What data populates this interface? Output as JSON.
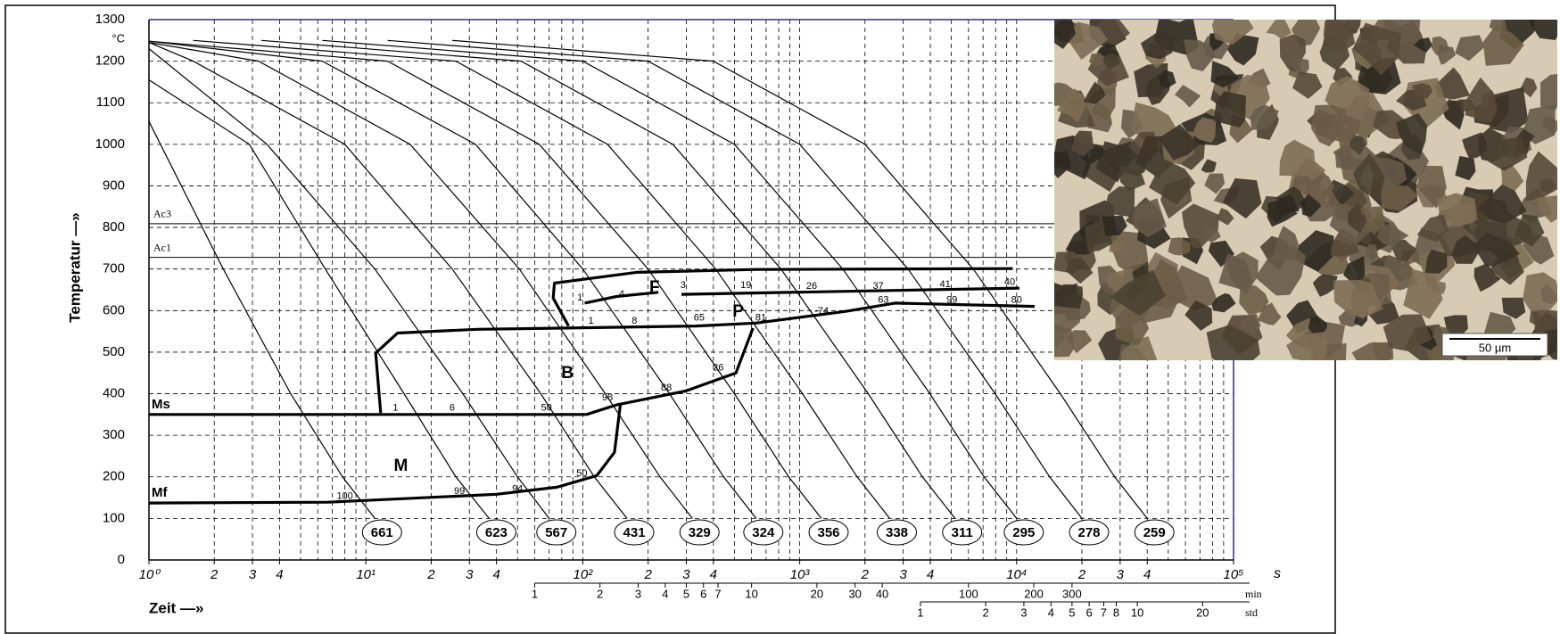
{
  "chart_data": {
    "type": "line",
    "x_scale": "log",
    "xlim": [
      1,
      100000
    ],
    "ylim": [
      0,
      1300
    ],
    "y_label": "Temperatur —»",
    "y_unit": "°C",
    "x_label": "Zeit —»",
    "x_unit": "s",
    "yticks": [
      0,
      100,
      200,
      300,
      400,
      500,
      600,
      700,
      800,
      900,
      1000,
      1100,
      1200,
      1300
    ],
    "xticks": [
      {
        "value": 1,
        "label": "10⁰"
      },
      2,
      3,
      4,
      {
        "value": 10,
        "label": "10¹"
      },
      {
        "value": 20,
        "label": "2"
      },
      {
        "value": 30,
        "label": "3"
      },
      {
        "value": 40,
        "label": "4"
      },
      {
        "value": 100,
        "label": "10²"
      },
      {
        "value": 200,
        "label": "2"
      },
      {
        "value": 300,
        "label": "3"
      },
      {
        "value": 400,
        "label": "4"
      },
      {
        "value": 1000,
        "label": "10³"
      },
      {
        "value": 2000,
        "label": "2"
      },
      {
        "value": 3000,
        "label": "3"
      },
      {
        "value": 4000,
        "label": "4"
      },
      {
        "value": 10000,
        "label": "10⁴"
      },
      {
        "value": 20000,
        "label": "2"
      },
      {
        "value": 30000,
        "label": "3"
      },
      {
        "value": 40000,
        "label": "4"
      },
      {
        "value": 100000,
        "label": "10⁵"
      }
    ],
    "xgrid": [
      1,
      2,
      3,
      4,
      5,
      6,
      7,
      8,
      9,
      10,
      20,
      30,
      40,
      50,
      60,
      70,
      80,
      90,
      100,
      200,
      300,
      400,
      500,
      600,
      700,
      800,
      900,
      1000,
      2000,
      3000,
      4000,
      5000,
      6000,
      7000,
      8000,
      9000,
      10000,
      20000,
      30000,
      40000,
      50000,
      60000,
      70000,
      80000,
      90000,
      100000
    ],
    "grid": true,
    "min_axis": {
      "unit": "min",
      "ticks": [
        1,
        2,
        3,
        4,
        5,
        6,
        7,
        10,
        20,
        30,
        40,
        100,
        200,
        300
      ]
    },
    "std_axis": {
      "unit": "std",
      "ticks": [
        1,
        2,
        3,
        4,
        5,
        6,
        7,
        8,
        10,
        20
      ]
    },
    "reference_lines": [
      {
        "name": "Ac3",
        "value": 809
      },
      {
        "name": "Ac1",
        "value": 728
      }
    ],
    "series": [
      {
        "hardness": 661,
        "color": "#000000",
        "x": [
          1,
          2.2,
          4.5,
          7.8,
          11
        ],
        "values": [
          1055,
          700,
          400,
          200,
          100
        ]
      },
      {
        "hardness": 623,
        "color": "#000000",
        "x": [
          1,
          2.9,
          6.5,
          15,
          26,
          37
        ],
        "values": [
          1155,
          1000,
          700,
          400,
          200,
          100
        ]
      },
      {
        "hardness": 567,
        "color": "#000000",
        "x": [
          1,
          3.5,
          11,
          28,
          50,
          70
        ],
        "values": [
          1230,
          1000,
          700,
          400,
          200,
          100
        ]
      },
      {
        "hardness": 431,
        "color": "#000000",
        "x": [
          1,
          1.6,
          8,
          25,
          64,
          113,
          160
        ],
        "values": [
          1245,
          1200,
          1000,
          700,
          400,
          200,
          100
        ]
      },
      {
        "hardness": 329,
        "color": "#000000",
        "x": [
          1,
          3.2,
          16,
          51,
          127,
          227,
          320
        ],
        "values": [
          1245,
          1200,
          1000,
          700,
          400,
          200,
          100
        ]
      },
      {
        "hardness": 324,
        "color": "#000000",
        "x": [
          1,
          6.3,
          32,
          100,
          251,
          446,
          630
        ],
        "values": [
          1248,
          1200,
          1000,
          700,
          400,
          200,
          100
        ]
      },
      {
        "hardness": 356,
        "color": "#000000",
        "x": [
          1,
          12.6,
          63,
          200,
          500,
          890,
          1260
        ],
        "values": [
          1248,
          1200,
          1000,
          700,
          400,
          200,
          100
        ]
      },
      {
        "hardness": 338,
        "color": "#000000",
        "x": [
          1.6,
          26,
          130,
          410,
          1030,
          1840,
          2600
        ],
        "values": [
          1250,
          1200,
          1000,
          700,
          400,
          200,
          100
        ]
      },
      {
        "hardness": 311,
        "color": "#000000",
        "x": [
          3.3,
          52,
          260,
          820,
          2070,
          3680,
          5200
        ],
        "values": [
          1250,
          1200,
          1000,
          700,
          400,
          200,
          100
        ]
      },
      {
        "hardness": 295,
        "color": "#000000",
        "x": [
          6.3,
          100,
          500,
          1580,
          3980,
          7080,
          10000
        ],
        "values": [
          1250,
          1200,
          1000,
          700,
          400,
          200,
          100
        ]
      },
      {
        "hardness": 278,
        "color": "#000000",
        "x": [
          12.6,
          200,
          1000,
          3160,
          7960,
          14200,
          20000
        ],
        "values": [
          1250,
          1200,
          1000,
          700,
          400,
          200,
          100
        ]
      },
      {
        "hardness": 259,
        "color": "#000000",
        "x": [
          25,
          400,
          2000,
          6310,
          15900,
          28300,
          40000
        ],
        "values": [
          1250,
          1200,
          1000,
          700,
          400,
          200,
          100
        ]
      }
    ],
    "boundaries": [
      {
        "name": "Ms",
        "x": [
          1,
          104,
          143,
          300,
          508,
          609
        ],
        "values": [
          350,
          350,
          373,
          407,
          450,
          558
        ]
      },
      {
        "name": "Mf",
        "x": [
          1,
          6.7,
          40,
          76,
          116,
          140,
          149
        ],
        "values": [
          137,
          139,
          158,
          175,
          203,
          259,
          373
        ]
      },
      {
        "x": [
          11.7,
          11.1,
          14,
          32.6,
          84.5,
          333,
          628,
          1630,
          2750,
          12100
        ],
        "values": [
          354,
          498,
          546,
          555,
          558,
          563,
          570,
          598,
          618,
          610
        ]
      },
      {
        "x": [
          86,
          73,
          74,
          177,
          628,
          9600
        ],
        "values": [
          563,
          630,
          666,
          692,
          699,
          701
        ]
      },
      {
        "x": [
          285,
          10300
        ],
        "values": [
          639,
          654
        ]
      },
      {
        "x": [
          102,
          143,
          223
        ],
        "values": [
          618,
          634,
          644
        ]
      }
    ],
    "phase_labels": [
      {
        "text": "F",
        "x": 214,
        "y": 654
      },
      {
        "text": "P",
        "x": 520,
        "y": 596
      },
      {
        "text": "B",
        "x": 85,
        "y": 448
      },
      {
        "text": "M",
        "x": 14.5,
        "y": 225
      }
    ],
    "annotations": [
      {
        "text": "1",
        "x": 13.7,
        "y": 366
      },
      {
        "text": "6",
        "x": 25,
        "y": 366
      },
      {
        "text": "50",
        "x": 68,
        "y": 366
      },
      {
        "text": "98",
        "x": 130,
        "y": 390
      },
      {
        "text": "88",
        "x": 243,
        "y": 414
      },
      {
        "text": "26",
        "x": 421,
        "y": 462
      },
      {
        "text": "65",
        "x": 344,
        "y": 582
      },
      {
        "text": "81",
        "x": 662,
        "y": 582
      },
      {
        "text": "-74",
        "x": 1262,
        "y": 598
      },
      {
        "text": "63",
        "x": 2430,
        "y": 625
      },
      {
        "text": "99",
        "x": 5030,
        "y": 625
      },
      {
        "text": "80",
        "x": 10000,
        "y": 625
      },
      {
        "text": "40",
        "x": 9290,
        "y": 668
      },
      {
        "text": "41",
        "x": 4680,
        "y": 663
      },
      {
        "text": "37",
        "x": 2300,
        "y": 658
      },
      {
        "text": "26",
        "x": 1135,
        "y": 658
      },
      {
        "text": "19",
        "x": 565,
        "y": 661
      },
      {
        "text": "3",
        "x": 290,
        "y": 661
      },
      {
        "text": "4",
        "x": 151,
        "y": 639
      },
      {
        "text": "1",
        "x": 97,
        "y": 630
      },
      {
        "text": "8",
        "x": 173,
        "y": 575
      },
      {
        "text": "1",
        "x": 109,
        "y": 575
      },
      {
        "text": "100",
        "x": 8,
        "y": 153
      },
      {
        "text": "99",
        "x": 27,
        "y": 165
      },
      {
        "text": "94",
        "x": 50,
        "y": 170
      },
      {
        "text": "50",
        "x": 99,
        "y": 208
      }
    ]
  },
  "micrograph": {
    "scale_bar": "50 µm"
  }
}
